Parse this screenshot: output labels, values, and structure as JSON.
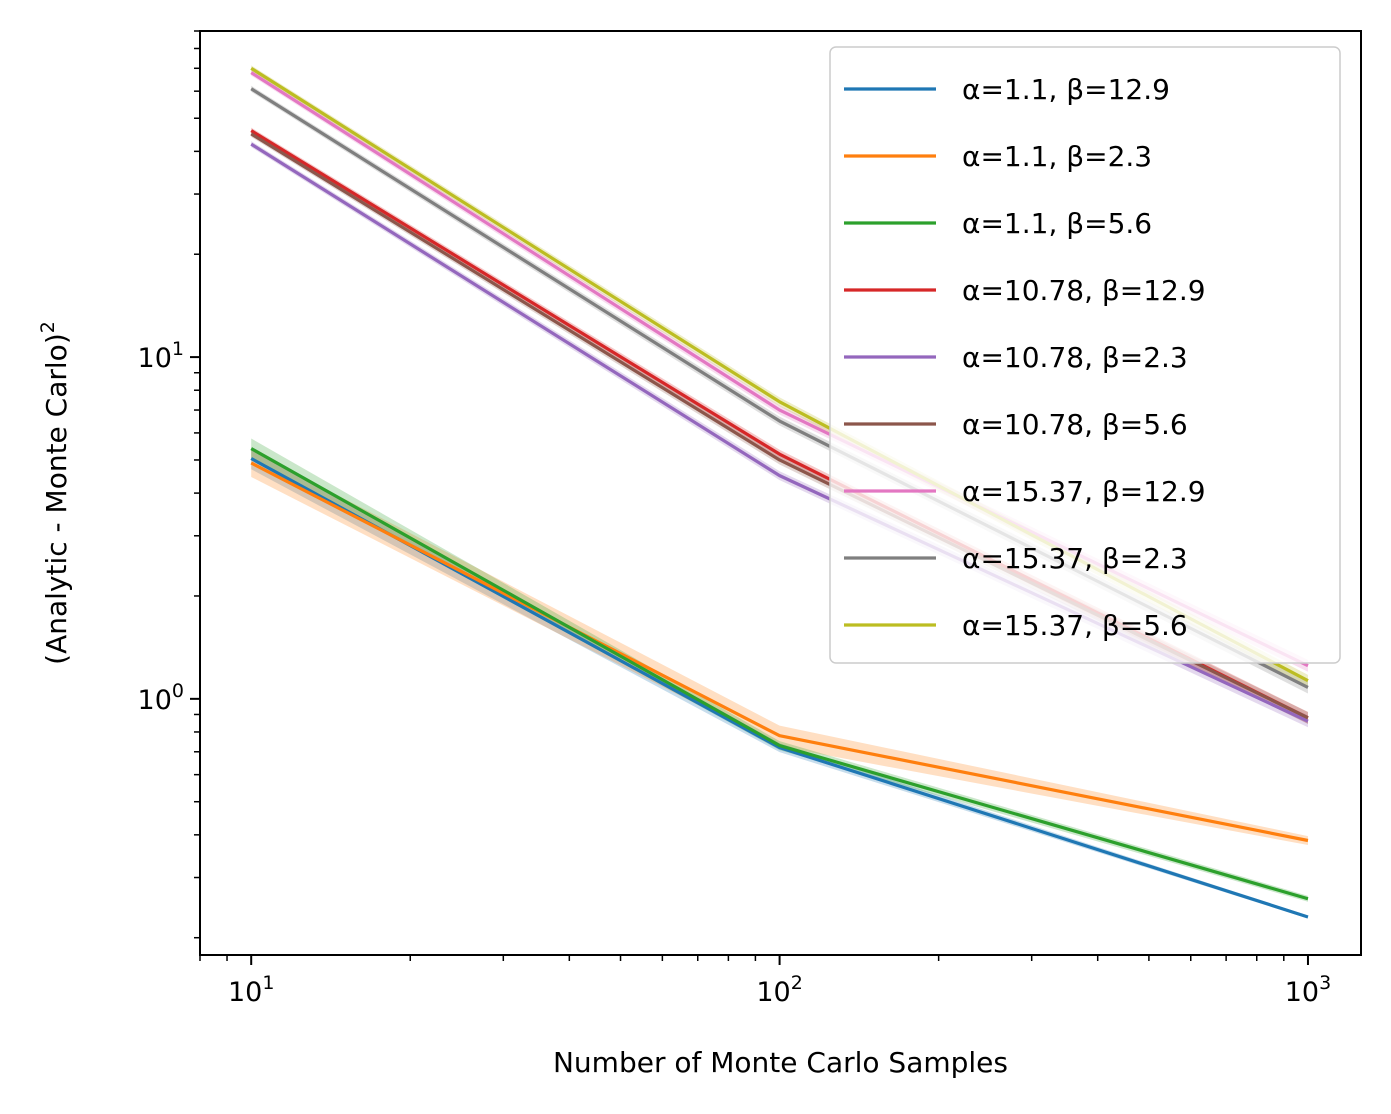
{
  "chart_data": {
    "type": "line",
    "title": "",
    "xlabel": "Number of Monte Carlo Samples",
    "ylabel": "(Analytic - Monte Carlo)",
    "ylabel_superscript": "2",
    "xscale": "log",
    "yscale": "log",
    "xlim": [
      8,
      1260
    ],
    "ylim": [
      0.178,
      90
    ],
    "x": [
      10,
      100,
      1000
    ],
    "x_ticks": [
      {
        "value": 10,
        "base": "10",
        "exp": "1"
      },
      {
        "value": 100,
        "base": "10",
        "exp": "2"
      },
      {
        "value": 1000,
        "base": "10",
        "exp": "3"
      }
    ],
    "y_ticks": [
      {
        "value": 1,
        "base": "10",
        "exp": "0"
      },
      {
        "value": 10,
        "base": "10",
        "exp": "1"
      }
    ],
    "legend_position": "top-right",
    "grid": false,
    "series": [
      {
        "name": "α=1.1, β=12.9",
        "color": "#1f77b4",
        "values": [
          5.05,
          0.72,
          0.23
        ],
        "band": [
          0.07,
          0.03,
          0.01
        ]
      },
      {
        "name": "α=1.1, β=2.3",
        "color": "#ff7f0e",
        "values": [
          4.9,
          0.78,
          0.385
        ],
        "band": [
          0.09,
          0.07,
          0.03
        ]
      },
      {
        "name": "α=1.1, β=5.6",
        "color": "#2ca02c",
        "values": [
          5.4,
          0.73,
          0.26
        ],
        "band": [
          0.07,
          0.03,
          0.02
        ]
      },
      {
        "name": "α=10.78, β=12.9",
        "color": "#d62728",
        "values": [
          46,
          5.2,
          0.88
        ],
        "band": [
          0.02,
          0.03,
          0.04
        ]
      },
      {
        "name": "α=10.78, β=2.3",
        "color": "#9467bd",
        "values": [
          42,
          4.5,
          0.86
        ],
        "band": [
          0.02,
          0.03,
          0.04
        ]
      },
      {
        "name": "α=10.78, β=5.6",
        "color": "#8c564b",
        "values": [
          45,
          5.0,
          0.88
        ],
        "band": [
          0.02,
          0.03,
          0.04
        ]
      },
      {
        "name": "α=15.37, β=12.9",
        "color": "#e377c2",
        "values": [
          68,
          7.0,
          1.25
        ],
        "band": [
          0.02,
          0.03,
          0.04
        ]
      },
      {
        "name": "α=15.37, β=2.3",
        "color": "#7f7f7f",
        "values": [
          61,
          6.5,
          1.08
        ],
        "band": [
          0.02,
          0.03,
          0.04
        ]
      },
      {
        "name": "α=15.37, β=5.6",
        "color": "#bcbd22",
        "values": [
          70,
          7.4,
          1.13
        ],
        "band": [
          0.02,
          0.03,
          0.04
        ]
      }
    ]
  }
}
